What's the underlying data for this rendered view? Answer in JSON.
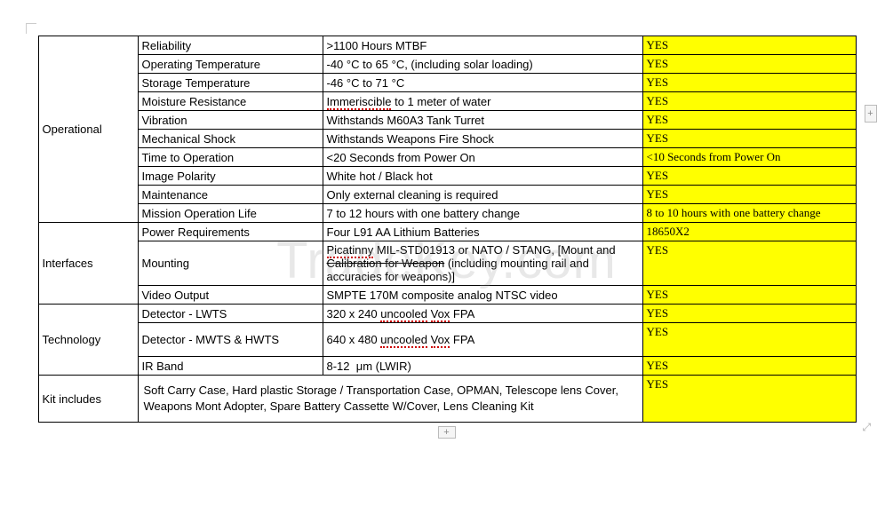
{
  "watermark": "TradeKey.com",
  "groups": [
    {
      "name": "Operational",
      "rows": [
        {
          "label": "Reliability",
          "value": ">1100 Hours MTBF",
          "status": "YES"
        },
        {
          "label": "Operating Temperature",
          "value": "-40 °C to 65 °C, (including solar loading)",
          "status": "YES"
        },
        {
          "label": "Storage Temperature",
          "value": "-46 °C to 71 °C",
          "status": "YES"
        },
        {
          "label": "Moisture Resistance",
          "value_html": "<span class='redline'>Immeriscible</span> to 1 meter of water",
          "status": "YES"
        },
        {
          "label": "Vibration",
          "value": "Withstands M60A3 Tank Turret",
          "status": "YES"
        },
        {
          "label": "Mechanical Shock",
          "value": "Withstands Weapons Fire Shock",
          "status": "YES"
        },
        {
          "label": "Time to Operation",
          "value": "<20 Seconds from Power On",
          "status": "<10 Seconds from Power On"
        },
        {
          "label": "Image Polarity",
          "value": "White hot / Black hot",
          "status": "YES"
        },
        {
          "label": "Maintenance",
          "value": "Only external cleaning is required",
          "status": "YES"
        },
        {
          "label": "Mission Operation Life",
          "value": "7 to 12 hours with one battery change",
          "status": "8 to 10 hours with one battery change"
        }
      ]
    },
    {
      "name": "Interfaces",
      "rows": [
        {
          "label": "Power Requirements",
          "value": "Four L91 AA Lithium Batteries",
          "status": "18650X2"
        },
        {
          "label": "Mounting",
          "value_html": "<span class='redline'>Picatinny</span> MIL-STD01913 or NATO / STANG, [Mount and <span class='strike'>Calibration for Weapon</span> (including mounting rail and accuracies for weapons)]",
          "status": "YES",
          "tall": true
        },
        {
          "label": "Video Output",
          "value": "SMPTE 170M composite analog NTSC video",
          "status": "YES"
        }
      ]
    },
    {
      "name": "Technology",
      "rows": [
        {
          "label": "Detector - LWTS",
          "value_html": "320 x 240 <span class='redline'>uncooled</span> <span class='redline'>Vox</span> FPA",
          "status": "YES"
        },
        {
          "label": "Detector - MWTS & HWTS",
          "value_html": "640 x 480 <span class='redline'>uncooled</span> <span class='redline'>Vox</span> FPA",
          "status": "YES",
          "tall": true
        },
        {
          "label": "IR Band",
          "value_html": "8-12 &nbsp;μm (LWIR)",
          "status": "YES"
        }
      ]
    }
  ],
  "kit": {
    "group": "Kit includes",
    "content": "Soft Carry Case, Hard plastic Storage / Transportation Case, OPMAN, Telescope lens Cover, Weapons Mont Adopter, Spare Battery Cassette W/Cover, Lens Cleaning Kit",
    "status": "YES"
  },
  "buttons": {
    "plus": "+"
  },
  "colors": {
    "highlight": "#ffff00",
    "border": "#000000",
    "spell_underline": "#cc0000",
    "watermark": "rgba(150,150,150,0.22)"
  }
}
